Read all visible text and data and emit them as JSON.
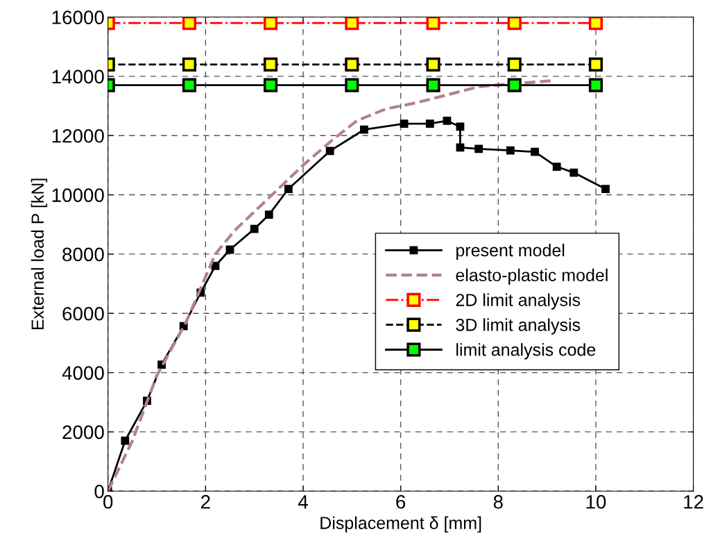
{
  "chart_data": {
    "type": "line",
    "xlabel": "Displacement δ [mm]",
    "ylabel": "External load P [kN]",
    "xlim": [
      0,
      12
    ],
    "ylim": [
      0,
      16000
    ],
    "xticks": [
      0,
      2,
      4,
      6,
      8,
      10,
      12
    ],
    "yticks": [
      0,
      2000,
      4000,
      6000,
      8000,
      10000,
      12000,
      14000,
      16000
    ],
    "grid": true,
    "legend": "center right",
    "series": [
      {
        "name": "present model",
        "color": "#000000",
        "marker": "square",
        "line_style": "solid",
        "x": [
          0,
          0.35,
          0.8,
          1.1,
          1.55,
          1.9,
          2.2,
          2.5,
          3.0,
          3.3,
          3.7,
          4.55,
          5.25,
          6.07,
          6.6,
          6.95,
          7.22,
          7.22,
          7.6,
          8.25,
          8.75,
          9.2,
          9.55,
          10.2
        ],
        "values": [
          0,
          1700,
          3050,
          4270,
          5570,
          6700,
          7600,
          8150,
          8850,
          9330,
          10200,
          11480,
          12200,
          12400,
          12400,
          12500,
          12300,
          11600,
          11550,
          11500,
          11450,
          10950,
          10750,
          10200
        ]
      },
      {
        "name": "elasto-plastic model",
        "color": "#b38383",
        "marker": "none",
        "line_style": "dashed",
        "x": [
          0,
          0.5,
          1.0,
          1.6,
          2.2,
          2.6,
          3.3,
          4.0,
          4.6,
          5.1,
          5.7,
          6.3,
          6.9,
          7.6,
          8.3,
          9.1
        ],
        "values": [
          0,
          1700,
          3900,
          5700,
          8000,
          8800,
          9900,
          11000,
          11850,
          12500,
          12900,
          13100,
          13350,
          13650,
          13750,
          13850
        ]
      },
      {
        "name": "2D limit analysis",
        "color": "#ff0000",
        "marker": "square",
        "line_style": "dashdot",
        "x": [
          0,
          1.667,
          3.333,
          5,
          6.667,
          8.333,
          10
        ],
        "values": [
          15800,
          15800,
          15800,
          15800,
          15800,
          15800,
          15800
        ]
      },
      {
        "name": "3D limit analysis",
        "color": "#000000",
        "marker": "square",
        "line_style": "dashed",
        "x": [
          0,
          1.667,
          3.333,
          5,
          6.667,
          8.333,
          10
        ],
        "values": [
          14400,
          14400,
          14400,
          14400,
          14400,
          14400,
          14400
        ]
      },
      {
        "name": "limit analysis code",
        "color": "#000000",
        "marker": "square",
        "line_style": "solid",
        "x": [
          0,
          1.667,
          3.333,
          5,
          6.667,
          8.333,
          10
        ],
        "values": [
          13700,
          13700,
          13700,
          13700,
          13700,
          13700,
          13700
        ]
      }
    ]
  }
}
